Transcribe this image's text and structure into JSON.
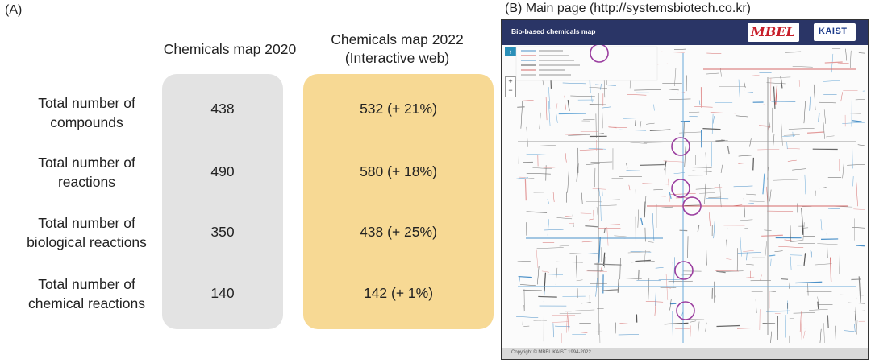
{
  "panel_a_label": "(A)",
  "panel_b_label": "(B) Main page (http://systemsbiotech.co.kr)",
  "columns": {
    "c2020": [
      "Chemicals map 2020"
    ],
    "c2022": [
      "Chemicals map 2022",
      "(Interactive web)"
    ]
  },
  "rows": [
    {
      "label": [
        "Total number of",
        "compounds"
      ],
      "v2020": "438",
      "v2022": "532 (+ 21%)"
    },
    {
      "label": [
        "Total number of",
        "reactions"
      ],
      "v2020": "490",
      "v2022": "580 (+ 18%)"
    },
    {
      "label": [
        "Total number of",
        "biological reactions"
      ],
      "v2020": "350",
      "v2022": "438 (+ 25%)"
    },
    {
      "label": [
        "Total number of",
        "chemical reactions"
      ],
      "v2020": "140",
      "v2022": "142 (+ 1%)"
    }
  ],
  "map": {
    "title": "Bio-based chemicals map",
    "logo_left": "MBEL",
    "logo_right": "KAIST",
    "copyright": "Copyright © MBEL KAIST 1994-2022"
  },
  "colors": {
    "box_2020": "#e3e3e3",
    "box_2022": "#f7d994",
    "map_header": "#2a3566"
  }
}
